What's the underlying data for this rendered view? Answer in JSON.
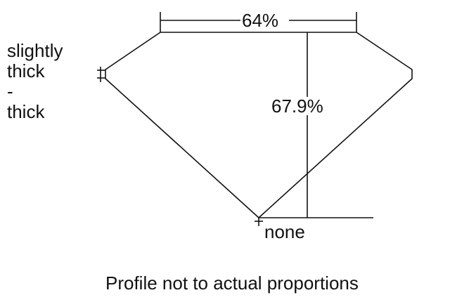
{
  "girdle_label_lines": [
    "slightly",
    "thick",
    "-",
    "thick"
  ],
  "table_percent": "64%",
  "depth_percent": "67.9%",
  "culet_label": "none",
  "caption": "Profile not to actual proportions"
}
